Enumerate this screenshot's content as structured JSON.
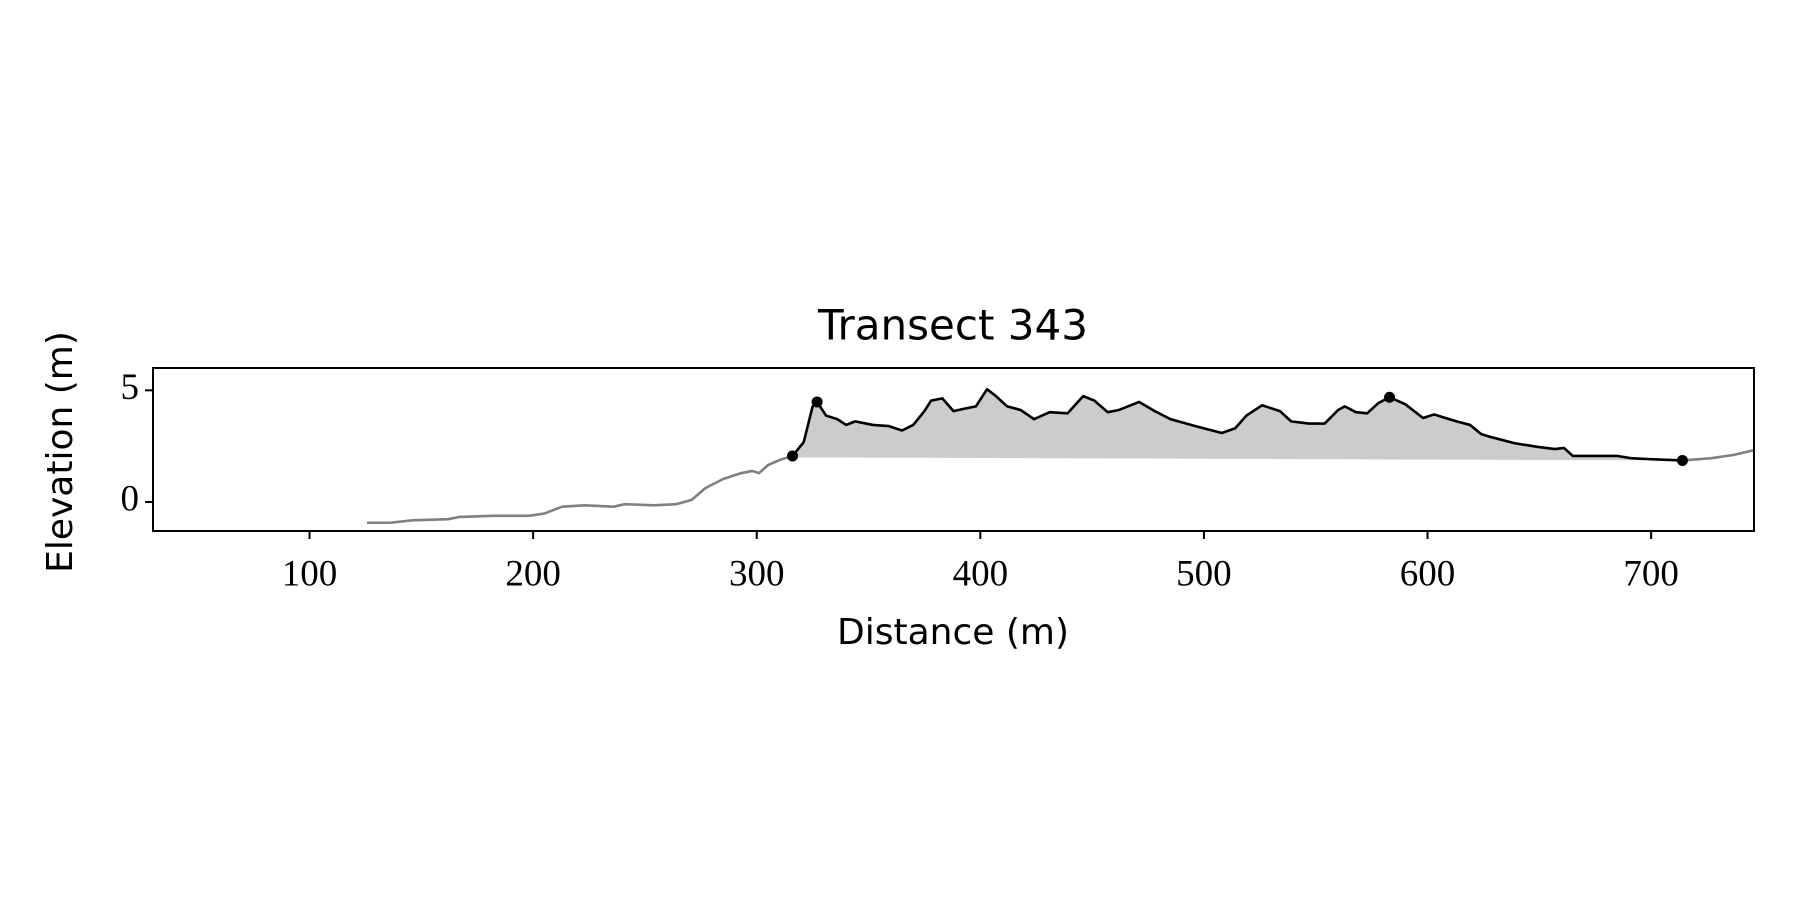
{
  "chart_data": {
    "type": "line",
    "title": "Transect 343",
    "xlabel": "Distance (m)",
    "ylabel": "Elevation (m)",
    "xlim": [
      30,
      746
    ],
    "ylim": [
      -1.3,
      6
    ],
    "xticks": [
      100,
      200,
      300,
      400,
      500,
      600,
      700
    ],
    "yticks": [
      0,
      5
    ],
    "series": [
      {
        "color": "#808080",
        "x": [
          125.7,
          136,
          146,
          162,
          167,
          182,
          198,
          205,
          213,
          223,
          236,
          241,
          254,
          264,
          271,
          277,
          285,
          293,
          298,
          301,
          305,
          311,
          316
        ],
        "values": [
          -0.93,
          -0.93,
          -0.82,
          -0.77,
          -0.67,
          -0.62,
          -0.62,
          -0.52,
          -0.21,
          -0.15,
          -0.21,
          -0.1,
          -0.15,
          -0.1,
          0.1,
          0.62,
          1.03,
          1.29,
          1.39,
          1.29,
          1.65,
          1.91,
          2.06
        ]
      },
      {
        "color": "#000000",
        "x": [
          316,
          321,
          325,
          327,
          331,
          336,
          340,
          344,
          352,
          359,
          365,
          370,
          375,
          378,
          383,
          388,
          393,
          398,
          403,
          407,
          412,
          418,
          424,
          431,
          439,
          446,
          451,
          457,
          462,
          471,
          478,
          485,
          496,
          508,
          514,
          519,
          526,
          534,
          539,
          547,
          554,
          560,
          563,
          568,
          573,
          578,
          583,
          590,
          598,
          603,
          608,
          613,
          619,
          624,
          629,
          639,
          649,
          657,
          661,
          665,
          675,
          685,
          691,
          701,
          714
        ],
        "values": [
          2.06,
          2.68,
          4.28,
          4.48,
          3.87,
          3.71,
          3.45,
          3.61,
          3.45,
          3.4,
          3.2,
          3.45,
          4.07,
          4.54,
          4.64,
          4.07,
          4.18,
          4.28,
          5.05,
          4.74,
          4.28,
          4.12,
          3.71,
          4.02,
          3.97,
          4.74,
          4.54,
          4.02,
          4.12,
          4.48,
          4.07,
          3.71,
          3.4,
          3.09,
          3.3,
          3.87,
          4.33,
          4.07,
          3.61,
          3.51,
          3.51,
          4.12,
          4.28,
          4.02,
          3.97,
          4.43,
          4.69,
          4.38,
          3.76,
          3.92,
          3.76,
          3.61,
          3.45,
          3.04,
          2.89,
          2.63,
          2.47,
          2.37,
          2.42,
          2.06,
          2.06,
          2.06,
          1.96,
          1.91,
          1.86
        ]
      },
      {
        "color": "#808080",
        "x": [
          714,
          727,
          737,
          746
        ],
        "values": [
          1.86,
          1.96,
          2.11,
          2.32
        ]
      }
    ],
    "fill": {
      "color": "#cccccc",
      "x": [
        316,
        714
      ],
      "values": [
        2.0,
        1.86
      ]
    },
    "markers": {
      "color": "#000000",
      "x": [
        316,
        327,
        583,
        714
      ],
      "values": [
        2.06,
        4.48,
        4.69,
        1.86
      ]
    }
  }
}
